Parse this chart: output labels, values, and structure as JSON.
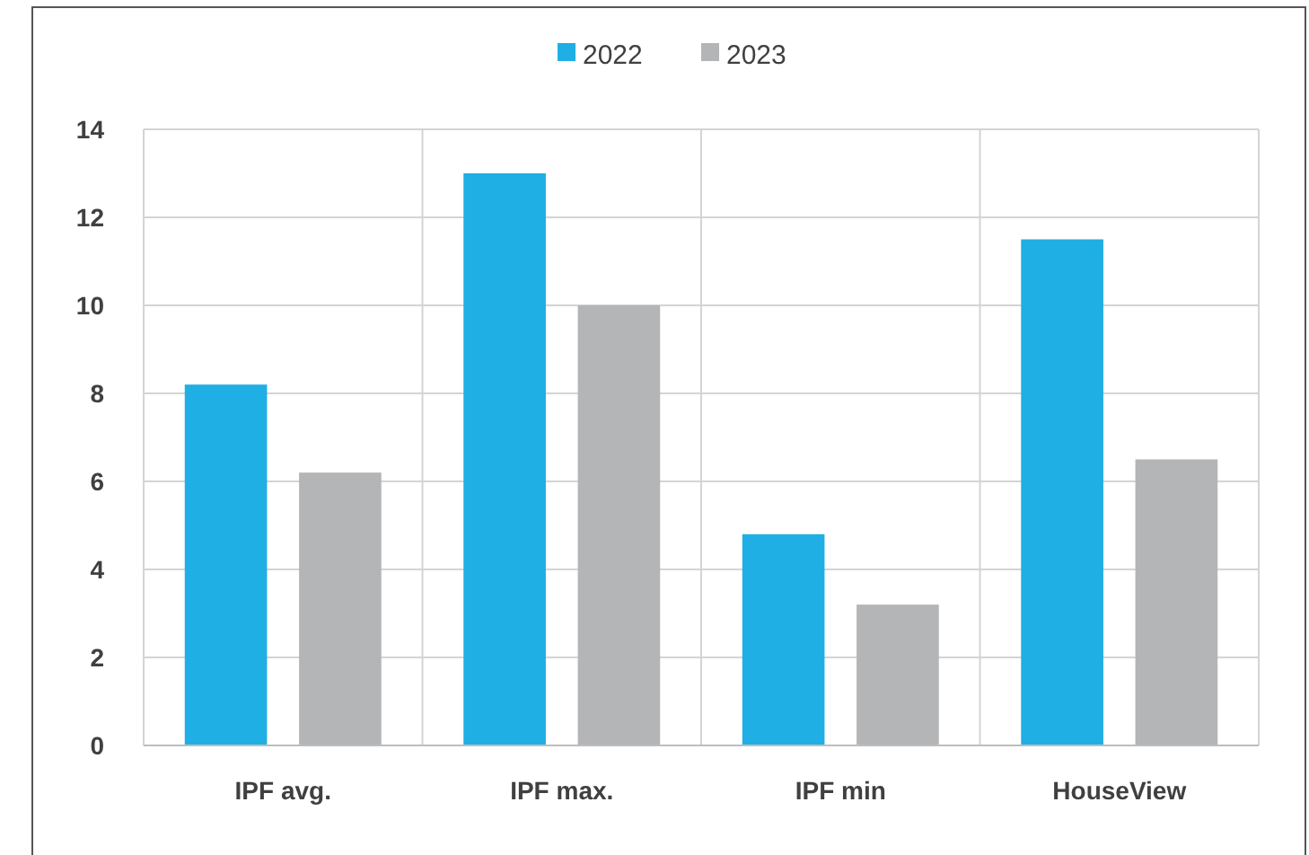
{
  "chart_data": {
    "type": "bar",
    "categories": [
      "IPF avg.",
      "IPF max.",
      "IPF min",
      "HouseView"
    ],
    "series": [
      {
        "name": "2022",
        "color": "#1fafe4",
        "values": [
          8.2,
          13,
          4.8,
          11.5
        ]
      },
      {
        "name": "2023",
        "color": "#b4b5b7",
        "values": [
          6.2,
          10,
          3.2,
          6.5
        ]
      }
    ],
    "ylim": [
      0,
      14
    ],
    "yticks": [
      0,
      2,
      4,
      6,
      8,
      10,
      12,
      14
    ],
    "grid": true,
    "legend": "top"
  }
}
